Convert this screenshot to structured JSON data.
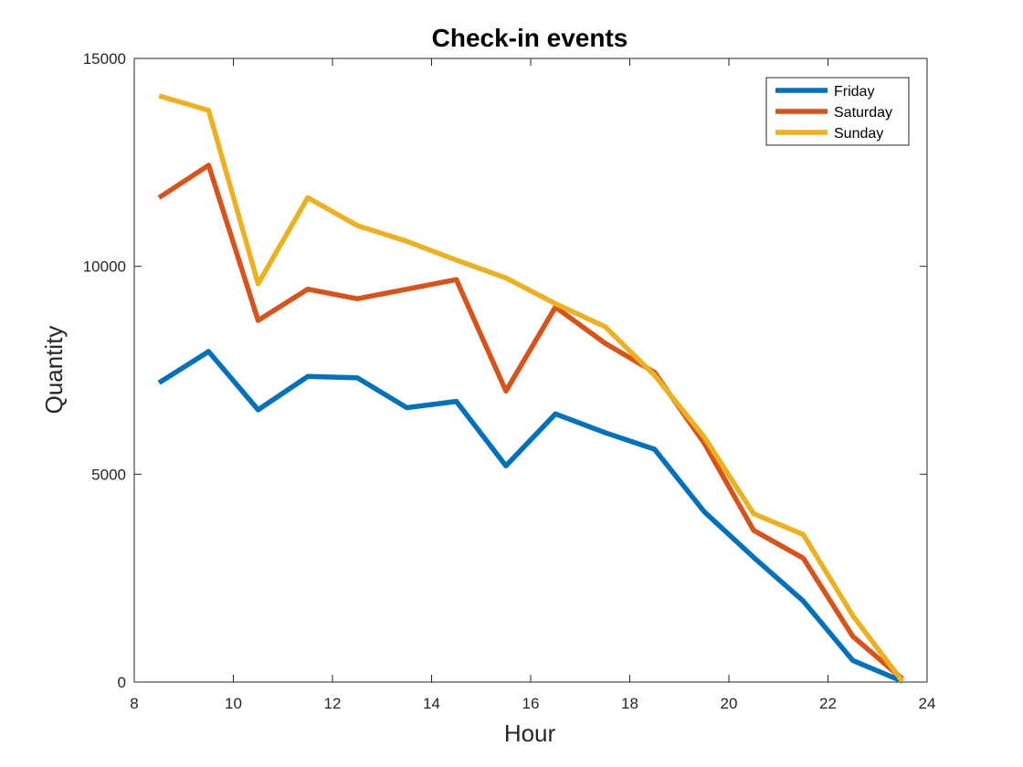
{
  "chart_data": {
    "type": "line",
    "title": "Check-in events",
    "xlabel": "Hour",
    "ylabel": "Quantity",
    "xlim": [
      8,
      24
    ],
    "ylim": [
      0,
      15000
    ],
    "xticks": [
      8,
      10,
      12,
      14,
      16,
      18,
      20,
      22,
      24
    ],
    "yticks": [
      0,
      5000,
      10000,
      15000
    ],
    "grid": false,
    "legend_position": "top-right",
    "x": [
      8.5,
      9.5,
      10.5,
      11.5,
      12.5,
      13.5,
      14.5,
      15.5,
      16.5,
      17.5,
      18.5,
      19.5,
      20.5,
      21.5,
      22.5,
      23.5
    ],
    "series": [
      {
        "name": "Friday",
        "color": "#0072BD",
        "values": [
          7200,
          7950,
          6550,
          7350,
          7320,
          6600,
          6750,
          5200,
          6450,
          6000,
          5600,
          4100,
          3000,
          1950,
          520,
          20
        ]
      },
      {
        "name": "Saturday",
        "color": "#D95319",
        "values": [
          11650,
          12430,
          8700,
          9450,
          9220,
          9450,
          9680,
          7000,
          9020,
          8150,
          7450,
          5750,
          3650,
          2980,
          1100,
          80
        ]
      },
      {
        "name": "Sunday",
        "color": "#EDB120",
        "values": [
          14100,
          13750,
          9580,
          11650,
          10980,
          10600,
          10150,
          9720,
          9100,
          8550,
          7380,
          5900,
          4050,
          3550,
          1600,
          20
        ]
      }
    ]
  }
}
